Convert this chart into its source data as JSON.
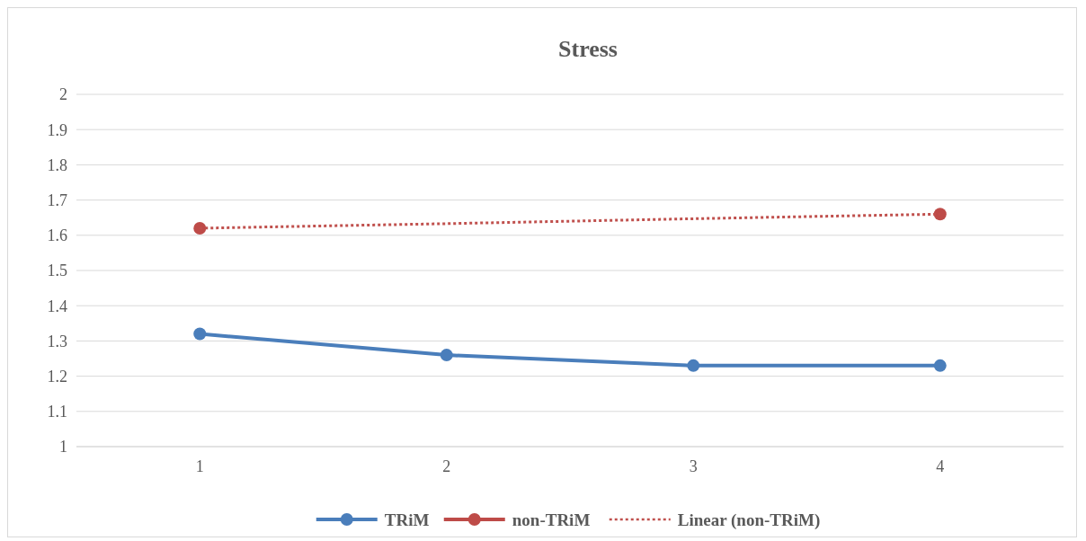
{
  "chart_data": {
    "type": "line",
    "title": "Stress",
    "categories": [
      "1",
      "2",
      "3",
      "4"
    ],
    "ylim": [
      1,
      2
    ],
    "yticks": [
      1,
      1.1,
      1.2,
      1.3,
      1.4,
      1.5,
      1.6,
      1.7,
      1.8,
      1.9,
      2
    ],
    "grid": "y",
    "legend": "bottom",
    "series": [
      {
        "name": "TRiM",
        "color": "#4a7ebb",
        "values": [
          1.32,
          1.26,
          1.23,
          1.23
        ],
        "marker": "circle",
        "line_style": "solid"
      },
      {
        "name": "non-TRiM",
        "color": "#be4b48",
        "values": [
          1.62,
          null,
          null,
          1.66
        ],
        "marker": "circle",
        "type": "scatter"
      },
      {
        "name": "Linear (non-TRiM)",
        "color": "#c0504d",
        "values": [
          1.62,
          1.633,
          1.647,
          1.66
        ],
        "marker": "none",
        "line_style": "dotted"
      }
    ]
  }
}
